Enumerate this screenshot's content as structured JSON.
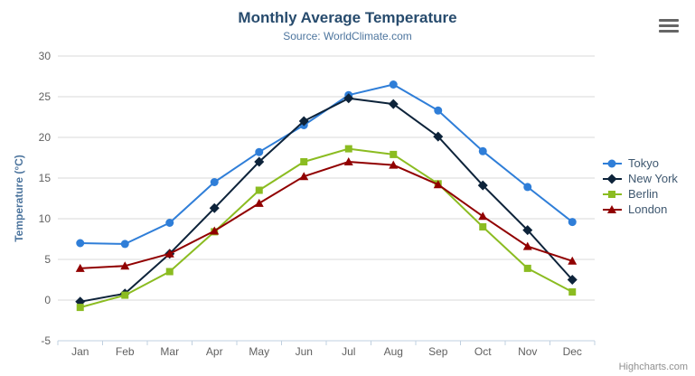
{
  "colors": {
    "background": "#ffffff",
    "title": "#274b6d",
    "subtitle": "#4d759e",
    "axis_labels": "#606060",
    "y_axis_title": "#4d759e",
    "gridline": "#d8d8d8",
    "axis_line": "#c0d0e0",
    "legend_text": "#3e576f",
    "credits": "#909090",
    "menu_icon": "#666666"
  },
  "chart_data": {
    "type": "line",
    "title": "Monthly Average Temperature",
    "subtitle": "Source: WorldClimate.com",
    "xlabel": "",
    "ylabel": "Temperature (°C)",
    "ylim": [
      -5,
      30
    ],
    "ytick_interval": 5,
    "grid": true,
    "legend_position": "right",
    "credits": "Highcharts.com",
    "categories": [
      "Jan",
      "Feb",
      "Mar",
      "Apr",
      "May",
      "Jun",
      "Jul",
      "Aug",
      "Sep",
      "Oct",
      "Nov",
      "Dec"
    ],
    "series": [
      {
        "name": "Tokyo",
        "color": "#2f7ed8",
        "marker": "circle",
        "values": [
          7.0,
          6.9,
          9.5,
          14.5,
          18.2,
          21.5,
          25.2,
          26.5,
          23.3,
          18.3,
          13.9,
          9.6
        ]
      },
      {
        "name": "New York",
        "color": "#0d233a",
        "marker": "diamond",
        "values": [
          -0.2,
          0.8,
          5.7,
          11.3,
          17.0,
          22.0,
          24.8,
          24.1,
          20.1,
          14.1,
          8.6,
          2.5
        ]
      },
      {
        "name": "Berlin",
        "color": "#8bbc21",
        "marker": "square",
        "values": [
          -0.9,
          0.6,
          3.5,
          8.4,
          13.5,
          17.0,
          18.6,
          17.9,
          14.3,
          9.0,
          3.9,
          1.0
        ]
      },
      {
        "name": "London",
        "color": "#910000",
        "marker": "triangle",
        "values": [
          3.9,
          4.2,
          5.7,
          8.5,
          11.9,
          15.2,
          17.0,
          16.6,
          14.2,
          10.3,
          6.6,
          4.8
        ]
      }
    ]
  }
}
